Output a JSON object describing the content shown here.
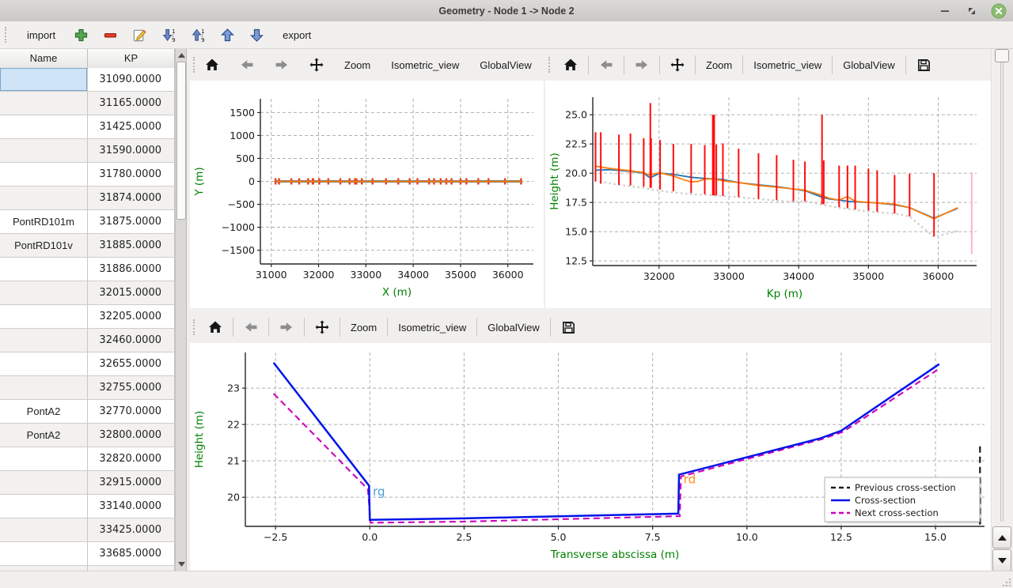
{
  "window": {
    "title": "Geometry - Node 1 -> Node 2"
  },
  "main_toolbar": {
    "import_label": "import",
    "export_label": "export",
    "icons": [
      {
        "name": "add-row",
        "glyph": "plus"
      },
      {
        "name": "delete-row",
        "glyph": "minus"
      },
      {
        "name": "edit-row",
        "glyph": "edit"
      },
      {
        "name": "sort-descending",
        "glyph": "sortdown"
      },
      {
        "name": "sort-ascending",
        "glyph": "sortup"
      },
      {
        "name": "move-up",
        "glyph": "arrup"
      },
      {
        "name": "move-down",
        "glyph": "arrdown"
      }
    ]
  },
  "table": {
    "columns": [
      "Name",
      "KP"
    ],
    "rows": [
      {
        "name": "",
        "kp": "31090.0000",
        "selected": true
      },
      {
        "name": "",
        "kp": "31165.0000"
      },
      {
        "name": "",
        "kp": "31425.0000"
      },
      {
        "name": "",
        "kp": "31590.0000"
      },
      {
        "name": "",
        "kp": "31780.0000"
      },
      {
        "name": "",
        "kp": "31874.0000"
      },
      {
        "name": "PontRD101m",
        "kp": "31875.0000"
      },
      {
        "name": "PontRD101v",
        "kp": "31885.0000"
      },
      {
        "name": "",
        "kp": "31886.0000"
      },
      {
        "name": "",
        "kp": "32015.0000"
      },
      {
        "name": "",
        "kp": "32205.0000"
      },
      {
        "name": "",
        "kp": "32460.0000"
      },
      {
        "name": "",
        "kp": "32655.0000"
      },
      {
        "name": "",
        "kp": "32755.0000"
      },
      {
        "name": "PontA2",
        "kp": "32770.0000"
      },
      {
        "name": "PontA2",
        "kp": "32800.0000"
      },
      {
        "name": "",
        "kp": "32820.0000"
      },
      {
        "name": "",
        "kp": "32915.0000"
      },
      {
        "name": "",
        "kp": "33140.0000"
      },
      {
        "name": "",
        "kp": "33425.0000"
      },
      {
        "name": "",
        "kp": "33685.0000"
      },
      {
        "name": "",
        "kp": ""
      }
    ]
  },
  "plot_toolbars": {
    "labels": {
      "zoom": "Zoom",
      "isometric": "Isometric_view",
      "global": "GlobalView",
      "overflow": "»"
    },
    "panels": [
      {
        "id": "plan",
        "buttons": [
          "home",
          "back",
          "forward",
          "pan",
          "zoom",
          "isometric",
          "global",
          "overflow"
        ]
      },
      {
        "id": "profile",
        "buttons": [
          "home",
          "back",
          "forward",
          "pan",
          "zoom",
          "isometric",
          "global",
          "save"
        ]
      },
      {
        "id": "cross",
        "buttons": [
          "home",
          "back",
          "forward",
          "pan",
          "zoom",
          "isometric",
          "global",
          "save"
        ]
      }
    ]
  },
  "colors": {
    "grid": "#b0b0b0",
    "axis_label_green": "#008000",
    "profile_blue": "#1f77b4",
    "profile_orange": "#ff7f0e",
    "spike_red": "#ff0d0d",
    "edge_spike_pink": "#ffb3c0",
    "thalweg_gray": "#cccccc",
    "cross_blue": "#0014e8",
    "next_magenta": "#cc00bb",
    "prev_black": "#1a1a1a",
    "marker_red": "#e93a1c",
    "selection_blue": "#cfe4f7",
    "close_green": "#8cbd72"
  },
  "chart_data": [
    {
      "id": "plan-view",
      "type": "line",
      "title": "",
      "xlabel": "X (m)",
      "ylabel": "Y (m)",
      "xlim": [
        30770,
        36540
      ],
      "ylim": [
        -1800,
        1800
      ],
      "xticks": [
        31000,
        32000,
        33000,
        34000,
        35000,
        36000
      ],
      "xtick_labels": [
        "31000",
        "32000",
        "33000",
        "34000",
        "35000",
        "36000"
      ],
      "yticks": [
        -1500,
        -1000,
        -500,
        0,
        500,
        1000,
        1500
      ],
      "ytick_labels": [
        "−1500",
        "−1000",
        "−500",
        "0",
        "500",
        "1000",
        "1500"
      ],
      "grid": true,
      "series": [
        {
          "name": "river-axis-blue",
          "color": "#1f77b4",
          "width": 3,
          "dash": "solid",
          "points": [
            [
              31090,
              0
            ],
            [
              36280,
              0
            ]
          ]
        },
        {
          "name": "river-axis-orange",
          "color": "#ff7f0e",
          "width": 2,
          "dash": "solid",
          "points": [
            [
              31090,
              0
            ],
            [
              36280,
              0
            ]
          ]
        }
      ],
      "tick_markers": {
        "name": "cross-section-markers",
        "color": "#e93a1c",
        "y": 0,
        "x": [
          31090,
          31165,
          31425,
          31590,
          31780,
          31875,
          31885,
          32015,
          32205,
          32460,
          32655,
          32770,
          32800,
          32915,
          33140,
          33425,
          33685,
          33925,
          34090,
          34335,
          34440,
          34580,
          34700,
          34810,
          35000,
          35125,
          35375,
          35590,
          35940,
          36280
        ]
      }
    },
    {
      "id": "longitudinal-profile",
      "type": "line",
      "title": "",
      "xlabel": "Kp (m)",
      "ylabel": "Height (m)",
      "xlim": [
        31050,
        36550
      ],
      "ylim": [
        12.1,
        26.5
      ],
      "xticks": [
        32000,
        33000,
        34000,
        35000,
        36000
      ],
      "xtick_labels": [
        "32000",
        "33000",
        "34000",
        "35000",
        "36000"
      ],
      "yticks": [
        12.5,
        15.0,
        17.5,
        20.0,
        22.5,
        25.0
      ],
      "ytick_labels": [
        "12.5",
        "15.0",
        "17.5",
        "20.0",
        "22.5",
        "25.0"
      ],
      "grid": true,
      "spike_color": "#ff0d0d",
      "spikes": [
        [
          31090,
          19.3,
          23.5
        ],
        [
          31165,
          19.1,
          23.5
        ],
        [
          31425,
          19.0,
          23.3
        ],
        [
          31590,
          18.95,
          23.4
        ],
        [
          31780,
          18.85,
          23.0
        ],
        [
          31875,
          18.75,
          26.0
        ],
        [
          31886,
          18.75,
          23.0
        ],
        [
          32015,
          18.6,
          22.85
        ],
        [
          32205,
          18.45,
          22.5
        ],
        [
          32460,
          18.3,
          22.5
        ],
        [
          32655,
          18.2,
          22.4
        ],
        [
          32770,
          18.1,
          25.0
        ],
        [
          32790,
          18.1,
          25.0
        ],
        [
          32820,
          18.1,
          22.45
        ],
        [
          32915,
          18.05,
          22.55
        ],
        [
          33140,
          17.95,
          22.1
        ],
        [
          33425,
          17.8,
          21.7
        ],
        [
          33685,
          17.7,
          21.55
        ],
        [
          33925,
          17.6,
          21.15
        ],
        [
          34090,
          17.6,
          21.0
        ],
        [
          34335,
          17.35,
          25.0
        ],
        [
          34360,
          17.35,
          21.1
        ],
        [
          34580,
          17.1,
          20.65
        ],
        [
          34700,
          17.0,
          20.65
        ],
        [
          34810,
          16.9,
          20.65
        ],
        [
          35000,
          16.8,
          20.4
        ],
        [
          35125,
          16.7,
          20.25
        ],
        [
          35375,
          16.55,
          19.85
        ],
        [
          35590,
          16.3,
          19.95
        ],
        [
          35940,
          14.6,
          20.0
        ],
        [
          36480,
          13.1,
          20.0,
          "#ffb3c0"
        ]
      ],
      "series": [
        {
          "name": "thalweg-dotted",
          "color": "#cccccc",
          "width": 2.6,
          "dash": "dotted",
          "points": [
            [
              31090,
              19.35
            ],
            [
              31425,
              19.0
            ],
            [
              31780,
              18.75
            ],
            [
              31900,
              18.6
            ],
            [
              32205,
              18.35
            ],
            [
              32460,
              18.2
            ],
            [
              32655,
              18.15
            ],
            [
              32915,
              18.05
            ],
            [
              33140,
              17.95
            ],
            [
              33425,
              17.8
            ],
            [
              33685,
              17.65
            ],
            [
              33925,
              17.55
            ],
            [
              34090,
              17.6
            ],
            [
              34200,
              17.5
            ],
            [
              34335,
              17.3
            ],
            [
              34580,
              17.05
            ],
            [
              34810,
              16.85
            ],
            [
              35125,
              16.65
            ],
            [
              35375,
              16.55
            ],
            [
              35590,
              16.3
            ],
            [
              35940,
              14.55
            ],
            [
              36280,
              15.05
            ]
          ]
        },
        {
          "name": "left-bank-blue",
          "color": "#1f77b4",
          "width": 1.8,
          "dash": "solid",
          "points": [
            [
              31090,
              20.25
            ],
            [
              31300,
              20.3
            ],
            [
              31600,
              20.15
            ],
            [
              31780,
              20.0
            ],
            [
              31860,
              19.65
            ],
            [
              31900,
              19.7
            ],
            [
              32015,
              20.0
            ],
            [
              32100,
              19.95
            ],
            [
              32205,
              19.9
            ],
            [
              32460,
              19.65
            ],
            [
              32655,
              19.55
            ],
            [
              32800,
              19.5
            ],
            [
              32915,
              19.45
            ],
            [
              33140,
              19.2
            ],
            [
              33425,
              19.0
            ],
            [
              33685,
              18.85
            ],
            [
              33925,
              18.65
            ],
            [
              34090,
              18.5
            ],
            [
              34335,
              17.95
            ],
            [
              34440,
              17.8
            ],
            [
              34580,
              17.7
            ],
            [
              34700,
              17.6
            ],
            [
              34810,
              17.55
            ],
            [
              35000,
              17.5
            ],
            [
              35125,
              17.45
            ],
            [
              35375,
              17.3
            ],
            [
              35590,
              17.05
            ],
            [
              35940,
              16.15
            ],
            [
              36280,
              17.0
            ]
          ]
        },
        {
          "name": "right-bank-orange",
          "color": "#ff7f0e",
          "width": 1.8,
          "dash": "solid",
          "points": [
            [
              31090,
              20.6
            ],
            [
              31300,
              20.4
            ],
            [
              31600,
              20.2
            ],
            [
              31780,
              20.05
            ],
            [
              31860,
              19.85
            ],
            [
              31900,
              19.9
            ],
            [
              32015,
              20.05
            ],
            [
              32100,
              19.9
            ],
            [
              32205,
              19.75
            ],
            [
              32350,
              19.45
            ],
            [
              32460,
              19.25
            ],
            [
              32560,
              19.3
            ],
            [
              32655,
              19.5
            ],
            [
              32800,
              19.5
            ],
            [
              32915,
              19.35
            ],
            [
              33140,
              19.2
            ],
            [
              33425,
              18.95
            ],
            [
              33685,
              18.8
            ],
            [
              33925,
              18.65
            ],
            [
              34090,
              18.55
            ],
            [
              34335,
              18.1
            ],
            [
              34440,
              17.85
            ],
            [
              34580,
              17.7
            ],
            [
              34700,
              18.0
            ],
            [
              34810,
              17.6
            ],
            [
              35000,
              17.5
            ],
            [
              35125,
              17.45
            ],
            [
              35375,
              17.35
            ],
            [
              35590,
              17.05
            ],
            [
              35940,
              16.1
            ],
            [
              36280,
              17.05
            ]
          ]
        }
      ]
    },
    {
      "id": "cross-section",
      "type": "line",
      "title": "",
      "xlabel": "Transverse abscissa (m)",
      "ylabel": "Height (m)",
      "xlim": [
        -3.3,
        16.3
      ],
      "ylim": [
        19.2,
        23.98
      ],
      "xticks": [
        -2.5,
        0.0,
        2.5,
        5.0,
        7.5,
        10.0,
        12.5,
        15.0
      ],
      "xtick_labels": [
        "−2.5",
        "0.0",
        "2.5",
        "5.0",
        "7.5",
        "10.0",
        "12.5",
        "15.0"
      ],
      "yticks": [
        20,
        21,
        22,
        23
      ],
      "ytick_labels": [
        "20",
        "21",
        "22",
        "23"
      ],
      "grid": true,
      "series": [
        {
          "name": "previous-cross-section-edge",
          "color": "#1a1a1a",
          "width": 2.2,
          "dash": "dashed",
          "points": [
            [
              16.18,
              19.25
            ],
            [
              16.18,
              21.4
            ]
          ]
        },
        {
          "name": "next-cross-section",
          "color": "#cc00bb",
          "width": 2.1,
          "dash": "dashed",
          "points": [
            [
              -2.55,
              22.85
            ],
            [
              -0.05,
              20.22
            ],
            [
              0.02,
              19.3
            ],
            [
              2.5,
              19.33
            ],
            [
              8.22,
              19.48
            ],
            [
              8.25,
              20.57
            ],
            [
              12.0,
              21.6
            ],
            [
              12.55,
              21.8
            ],
            [
              15.05,
              23.5
            ]
          ]
        },
        {
          "name": "cross-section",
          "color": "#0014e8",
          "width": 2.5,
          "dash": "solid",
          "points": [
            [
              -2.55,
              23.7
            ],
            [
              -0.02,
              20.32
            ],
            [
              0.0,
              19.38
            ],
            [
              2.5,
              19.42
            ],
            [
              8.18,
              19.55
            ],
            [
              8.2,
              20.62
            ],
            [
              11.95,
              21.62
            ],
            [
              12.5,
              21.83
            ],
            [
              15.1,
              23.66
            ]
          ]
        }
      ],
      "annotations": [
        {
          "text": "rg",
          "x": 0.08,
          "y": 20.05,
          "color": "#4a9fd8"
        },
        {
          "text": "rd",
          "x": 8.32,
          "y": 20.38,
          "color": "#ff8c1a"
        }
      ],
      "legend": {
        "position": "lower right",
        "items": [
          {
            "label": "Previous cross-section",
            "color": "#1a1a1a",
            "dash": "dashed"
          },
          {
            "label": "Cross-section",
            "color": "#0014e8",
            "dash": "solid"
          },
          {
            "label": "Next cross-section",
            "color": "#cc00bb",
            "dash": "dashed"
          }
        ]
      }
    }
  ]
}
